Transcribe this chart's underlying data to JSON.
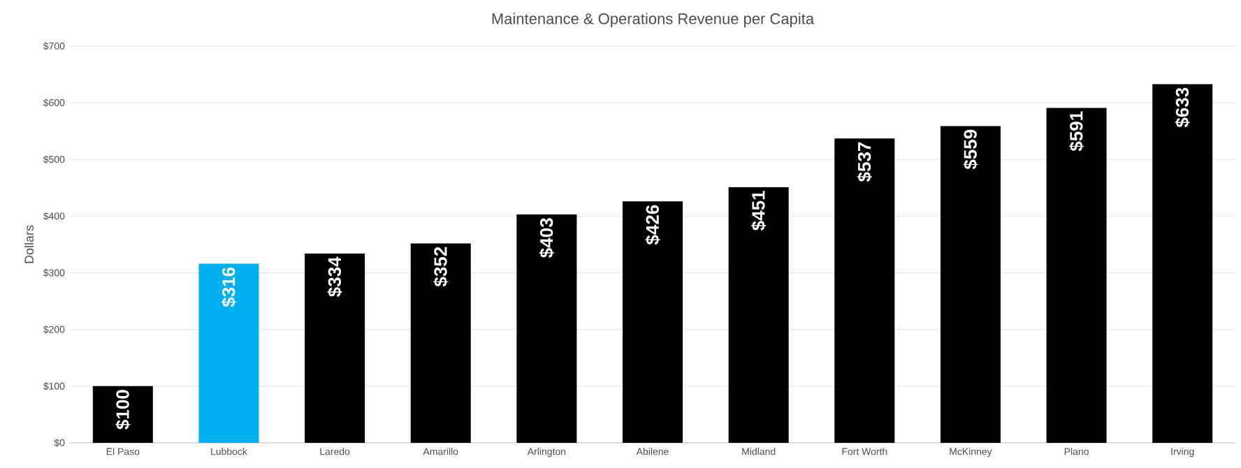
{
  "chart_data": {
    "type": "bar",
    "title": "Maintenance & Operations Revenue per Capita",
    "ylabel": "Dollars",
    "categories": [
      "El Paso",
      "Lubbock",
      "Laredo",
      "Amarillo",
      "Arlington",
      "Abilene",
      "Midland",
      "Fort Worth",
      "McKinney",
      "Plano",
      "Irving"
    ],
    "values": [
      100,
      316,
      334,
      352,
      403,
      426,
      451,
      537,
      559,
      591,
      633
    ],
    "value_labels": [
      "$100",
      "$316",
      "$334",
      "$352",
      "$403",
      "$426",
      "$451",
      "$537",
      "$559",
      "$591",
      "$633"
    ],
    "colors": [
      "#000000",
      "#00b0f0",
      "#000000",
      "#000000",
      "#000000",
      "#000000",
      "#000000",
      "#000000",
      "#000000",
      "#000000",
      "#000000"
    ],
    "ylim": [
      0,
      700
    ],
    "yticks": [
      {
        "value": 0,
        "label": "$0"
      },
      {
        "value": 100,
        "label": "$100"
      },
      {
        "value": 200,
        "label": "$200"
      },
      {
        "value": 300,
        "label": "$300"
      },
      {
        "value": 400,
        "label": "$400"
      },
      {
        "value": 500,
        "label": "$500"
      },
      {
        "value": 600,
        "label": "$600"
      },
      {
        "value": 700,
        "label": "$700"
      }
    ],
    "grid": "y"
  }
}
